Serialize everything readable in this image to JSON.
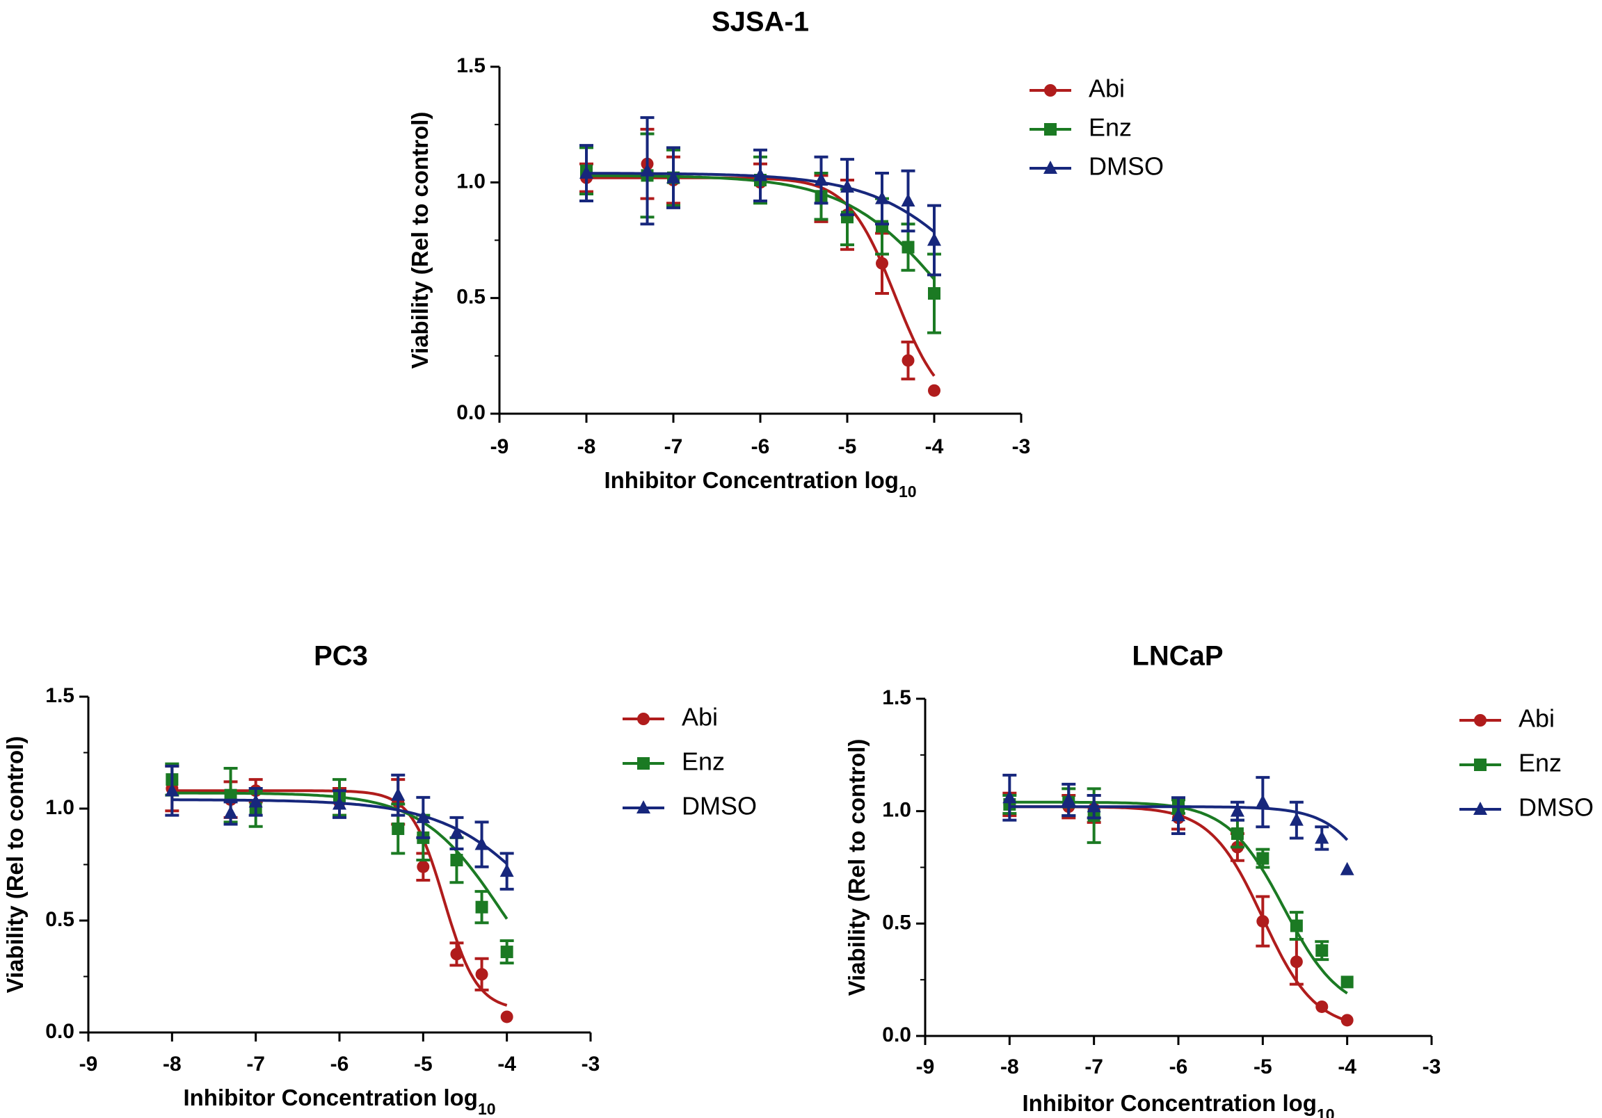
{
  "chart_data": [
    {
      "type": "line",
      "title": "SJSA-1",
      "xlabel": "Inhibitor Concentration log",
      "xlabel_sub": "10",
      "ylabel": "Viability (Rel to control)",
      "xlim": [
        -9,
        -3
      ],
      "ylim": [
        0,
        1.5
      ],
      "xticks": [
        "-9",
        "-8",
        "-7",
        "-6",
        "-5",
        "-4",
        "-3"
      ],
      "yticks": [
        "0.0",
        "0.5",
        "1.0",
        "1.5"
      ],
      "legend_position": "top-right",
      "series": [
        {
          "name": "Abi",
          "color": "#b01c1c",
          "marker": "circle",
          "x": [
            -8,
            -7.3,
            -7,
            -6,
            -5.3,
            -5,
            -4.6,
            -4.3,
            -4
          ],
          "y": [
            1.02,
            1.08,
            1.01,
            1.0,
            0.93,
            0.86,
            0.65,
            0.23,
            0.1
          ],
          "err": [
            0.06,
            0.15,
            0.1,
            0.08,
            0.1,
            0.15,
            0.13,
            0.08,
            0.0
          ],
          "fit": {
            "top": 1.02,
            "bottom": 0.0,
            "log_ic50": -4.45,
            "hill": 1.6
          }
        },
        {
          "name": "Enz",
          "color": "#1b7a23",
          "marker": "square",
          "x": [
            -8,
            -7.3,
            -7,
            -6,
            -5.3,
            -5,
            -4.6,
            -4.3,
            -4
          ],
          "y": [
            1.05,
            1.03,
            1.02,
            1.01,
            0.94,
            0.85,
            0.81,
            0.72,
            0.52
          ],
          "err": [
            0.1,
            0.18,
            0.12,
            0.1,
            0.1,
            0.12,
            0.12,
            0.1,
            0.17
          ],
          "fit": {
            "top": 1.03,
            "bottom": 0.0,
            "log_ic50": -3.85,
            "hill": 0.75
          }
        },
        {
          "name": "DMSO",
          "color": "#17277c",
          "marker": "triangle",
          "x": [
            -8,
            -7.3,
            -7,
            -6,
            -5.3,
            -5,
            -4.6,
            -4.3,
            -4
          ],
          "y": [
            1.04,
            1.05,
            1.02,
            1.03,
            1.01,
            0.98,
            0.93,
            0.92,
            0.75
          ],
          "err": [
            0.12,
            0.23,
            0.13,
            0.11,
            0.1,
            0.12,
            0.11,
            0.13,
            0.15
          ],
          "fit": {
            "top": 1.04,
            "bottom": 0.0,
            "log_ic50": -3.3,
            "hill": 0.7
          }
        }
      ]
    },
    {
      "type": "line",
      "title": "PC3",
      "xlabel": "Inhibitor Concentration log",
      "xlabel_sub": "10",
      "ylabel": "Viability (Rel to control)",
      "xlim": [
        -9,
        -3
      ],
      "ylim": [
        0,
        1.5
      ],
      "xticks": [
        "-9",
        "-8",
        "-7",
        "-6",
        "-5",
        "-4",
        "-3"
      ],
      "yticks": [
        "0.0",
        "0.5",
        "1.0",
        "1.5"
      ],
      "legend_position": "top-right",
      "series": [
        {
          "name": "Abi",
          "color": "#b01c1c",
          "marker": "circle",
          "x": [
            -8,
            -7.3,
            -7,
            -6,
            -5.3,
            -5,
            -4.6,
            -4.3,
            -4
          ],
          "y": [
            1.09,
            1.04,
            1.08,
            1.03,
            1.03,
            0.74,
            0.35,
            0.26,
            0.07
          ],
          "err": [
            0.1,
            0.08,
            0.05,
            0.06,
            0.1,
            0.06,
            0.05,
            0.07,
            0.0
          ],
          "fit": {
            "top": 1.08,
            "bottom": 0.1,
            "log_ic50": -4.75,
            "hill": 2.2
          }
        },
        {
          "name": "Enz",
          "color": "#1b7a23",
          "marker": "square",
          "x": [
            -8,
            -7.3,
            -7,
            -6,
            -5.3,
            -5,
            -4.6,
            -4.3,
            -4
          ],
          "y": [
            1.13,
            1.06,
            1.0,
            1.05,
            0.91,
            0.87,
            0.77,
            0.56,
            0.36
          ],
          "err": [
            0.07,
            0.12,
            0.08,
            0.08,
            0.11,
            0.1,
            0.1,
            0.07,
            0.05
          ],
          "fit": {
            "top": 1.07,
            "bottom": 0.0,
            "log_ic50": -4.05,
            "hill": 0.9
          }
        },
        {
          "name": "DMSO",
          "color": "#17277c",
          "marker": "triangle",
          "x": [
            -8,
            -7.3,
            -7,
            -6,
            -5.3,
            -5,
            -4.6,
            -4.3,
            -4
          ],
          "y": [
            1.08,
            0.98,
            1.03,
            1.02,
            1.06,
            0.96,
            0.89,
            0.84,
            0.72
          ],
          "err": [
            0.11,
            0.05,
            0.06,
            0.06,
            0.09,
            0.09,
            0.07,
            0.1,
            0.08
          ],
          "fit": {
            "top": 1.04,
            "bottom": 0.0,
            "log_ic50": -3.4,
            "hill": 0.7
          }
        }
      ]
    },
    {
      "type": "line",
      "title": "LNCaP",
      "xlabel": "Inhibitor Concentration log",
      "xlabel_sub": "10",
      "ylabel": "Viability (Rel to control)",
      "xlim": [
        -9,
        -3
      ],
      "ylim": [
        0,
        1.5
      ],
      "xticks": [
        "-9",
        "-8",
        "-7",
        "-6",
        "-5",
        "-4",
        "-3"
      ],
      "yticks": [
        "0.0",
        "0.5",
        "1.0",
        "1.5"
      ],
      "legend_position": "top-right",
      "series": [
        {
          "name": "Abi",
          "color": "#b01c1c",
          "marker": "circle",
          "x": [
            -8,
            -7.3,
            -7,
            -6,
            -5.3,
            -5,
            -4.6,
            -4.3,
            -4
          ],
          "y": [
            1.03,
            1.02,
            1.01,
            0.97,
            0.84,
            0.51,
            0.33,
            0.13,
            0.07
          ],
          "err": [
            0.05,
            0.05,
            0.06,
            0.05,
            0.06,
            0.11,
            0.1,
            0.0,
            0.0
          ],
          "fit": {
            "top": 1.02,
            "bottom": 0.03,
            "log_ic50": -5.0,
            "hill": 1.4
          }
        },
        {
          "name": "Enz",
          "color": "#1b7a23",
          "marker": "square",
          "x": [
            -8,
            -7.3,
            -7,
            -6,
            -5.3,
            -5,
            -4.6,
            -4.3,
            -4
          ],
          "y": [
            1.03,
            1.04,
            0.98,
            1.02,
            0.9,
            0.79,
            0.49,
            0.38,
            0.24
          ],
          "err": [
            0.04,
            0.06,
            0.12,
            0.03,
            0.06,
            0.04,
            0.06,
            0.04,
            0.0
          ],
          "fit": {
            "top": 1.04,
            "bottom": 0.1,
            "log_ic50": -4.75,
            "hill": 1.3
          }
        },
        {
          "name": "DMSO",
          "color": "#17277c",
          "marker": "triangle",
          "x": [
            -8,
            -7.3,
            -7,
            -6,
            -5.3,
            -5,
            -4.6,
            -4.3,
            -4
          ],
          "y": [
            1.06,
            1.05,
            1.02,
            0.98,
            1.0,
            1.04,
            0.96,
            0.88,
            0.74
          ],
          "err": [
            0.1,
            0.07,
            0.05,
            0.08,
            0.04,
            0.11,
            0.08,
            0.05,
            0.0
          ],
          "fit": {
            "top": 1.02,
            "bottom": 0.0,
            "log_ic50": -3.45,
            "hill": 1.4
          }
        }
      ]
    }
  ]
}
